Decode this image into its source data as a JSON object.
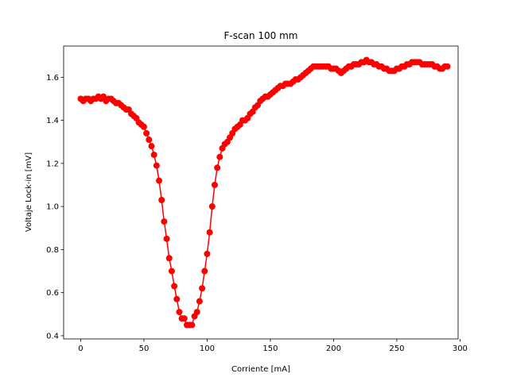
{
  "chart_data": {
    "type": "line",
    "title": "F-scan 100 mm",
    "xlabel": "Corriente [mA]",
    "ylabel": "Voltaje Lock-in [mV]",
    "xlim": [
      -13.5,
      298.5
    ],
    "ylim": [
      0.385,
      1.745
    ],
    "xticks": [
      0,
      50,
      100,
      150,
      200,
      250,
      300
    ],
    "yticks": [
      0.4,
      0.6,
      0.8,
      1.0,
      1.2,
      1.4,
      1.6
    ],
    "xtick_labels": [
      "0",
      "50",
      "100",
      "150",
      "200",
      "250",
      "300"
    ],
    "ytick_labels": [
      "0.4",
      "0.6",
      "0.8",
      "1.0",
      "1.2",
      "1.4",
      "1.6"
    ],
    "grid": false,
    "legend": false,
    "series": [
      {
        "color": "#ff0000",
        "marker": "circle",
        "x": [
          0,
          2,
          4,
          6,
          8,
          10,
          12,
          14,
          16,
          18,
          20,
          22,
          24,
          26,
          28,
          30,
          32,
          34,
          36,
          38,
          40,
          42,
          44,
          46,
          48,
          50,
          52,
          54,
          56,
          58,
          60,
          62,
          64,
          66,
          68,
          70,
          72,
          74,
          76,
          78,
          80,
          82,
          84,
          86,
          88,
          90,
          92,
          94,
          96,
          98,
          100,
          102,
          104,
          106,
          108,
          110,
          112,
          114,
          116,
          118,
          120,
          122,
          124,
          126,
          128,
          130,
          132,
          134,
          136,
          138,
          140,
          142,
          144,
          146,
          148,
          150,
          152,
          154,
          156,
          158,
          160,
          162,
          164,
          166,
          168,
          170,
          172,
          174,
          176,
          178,
          180,
          182,
          184,
          186,
          188,
          190,
          192,
          194,
          196,
          198,
          200,
          202,
          204,
          206,
          208,
          210,
          212,
          214,
          216,
          218,
          220,
          222,
          224,
          226,
          228,
          230,
          232,
          234,
          236,
          238,
          240,
          242,
          244,
          246,
          248,
          250,
          252,
          254,
          256,
          258,
          260,
          262,
          264,
          266,
          268,
          270,
          272,
          274,
          276,
          278,
          280,
          282,
          284,
          286,
          288,
          290
        ],
        "y": [
          1.5,
          1.49,
          1.5,
          1.5,
          1.49,
          1.5,
          1.5,
          1.51,
          1.5,
          1.51,
          1.49,
          1.5,
          1.5,
          1.49,
          1.48,
          1.48,
          1.47,
          1.46,
          1.45,
          1.45,
          1.43,
          1.42,
          1.41,
          1.39,
          1.38,
          1.37,
          1.34,
          1.31,
          1.28,
          1.24,
          1.19,
          1.12,
          1.03,
          0.93,
          0.85,
          0.76,
          0.7,
          0.63,
          0.57,
          0.51,
          0.48,
          0.48,
          0.45,
          0.45,
          0.45,
          0.49,
          0.51,
          0.56,
          0.62,
          0.7,
          0.78,
          0.88,
          1.0,
          1.1,
          1.18,
          1.23,
          1.27,
          1.29,
          1.3,
          1.32,
          1.34,
          1.36,
          1.37,
          1.38,
          1.4,
          1.4,
          1.41,
          1.43,
          1.44,
          1.46,
          1.47,
          1.49,
          1.5,
          1.51,
          1.51,
          1.52,
          1.53,
          1.54,
          1.55,
          1.56,
          1.56,
          1.57,
          1.57,
          1.57,
          1.58,
          1.59,
          1.59,
          1.6,
          1.61,
          1.62,
          1.63,
          1.64,
          1.65,
          1.65,
          1.65,
          1.65,
          1.65,
          1.65,
          1.65,
          1.64,
          1.64,
          1.64,
          1.63,
          1.62,
          1.63,
          1.64,
          1.65,
          1.65,
          1.66,
          1.66,
          1.66,
          1.67,
          1.67,
          1.68,
          1.67,
          1.67,
          1.66,
          1.66,
          1.65,
          1.65,
          1.64,
          1.64,
          1.63,
          1.63,
          1.63,
          1.64,
          1.64,
          1.65,
          1.65,
          1.66,
          1.66,
          1.67,
          1.67,
          1.67,
          1.67,
          1.66,
          1.66,
          1.66,
          1.66,
          1.66,
          1.65,
          1.65,
          1.64,
          1.64,
          1.65,
          1.65
        ]
      }
    ]
  }
}
